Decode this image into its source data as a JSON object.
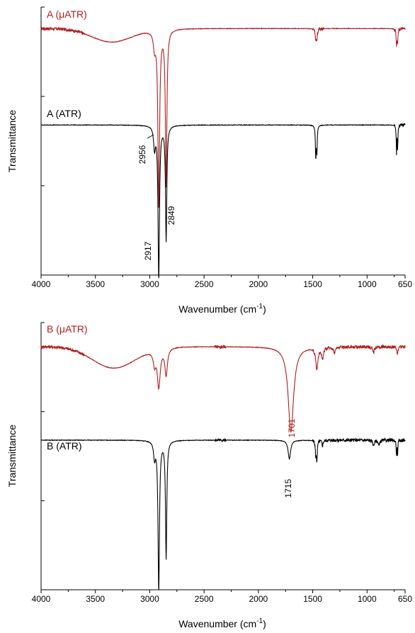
{
  "chart_data": [
    {
      "type": "line",
      "panel": "top",
      "xlabel": "Wavenumber (cm",
      "xlabel_sup": "-1",
      "xlabel_close": ")",
      "ylabel": "Transmittance",
      "xlim": [
        4000,
        650
      ],
      "x_reversed": true,
      "xticks": [
        "4000",
        "3500",
        "3000",
        "2500",
        "2000",
        "1500",
        "1000",
        "650"
      ],
      "y_tick_labels_shown": false,
      "series": [
        {
          "name": "A (μATR)",
          "color": "#b01c1c",
          "baseline": 0.92,
          "dip_width_scale": 1.0,
          "broad_bands": [
            {
              "center": 3350,
              "width": 260,
              "depth": 0.05
            }
          ],
          "peaks": [
            {
              "x": 2956,
              "depth": 0.06,
              "width": 12
            },
            {
              "x": 2917,
              "depth": 0.66,
              "width": 9
            },
            {
              "x": 2849,
              "depth": 0.58,
              "width": 8
            },
            {
              "x": 1472,
              "depth": 0.04,
              "width": 6
            },
            {
              "x": 1462,
              "depth": 0.03,
              "width": 6
            },
            {
              "x": 729,
              "depth": 0.06,
              "width": 4
            },
            {
              "x": 719,
              "depth": 0.05,
              "width": 4
            }
          ],
          "noise_regions": [
            [
              4000,
              3600
            ],
            [
              1500,
              1400
            ],
            [
              750,
              650
            ]
          ]
        },
        {
          "name": "A (ATR)",
          "color": "#000000",
          "baseline": 0.56,
          "dip_width_scale": 1.0,
          "broad_bands": [],
          "peaks": [
            {
              "x": 2956,
              "depth": 0.08,
              "width": 10
            },
            {
              "x": 2917,
              "depth": 0.57,
              "width": 8
            },
            {
              "x": 2849,
              "depth": 0.43,
              "width": 7
            },
            {
              "x": 1472,
              "depth": 0.12,
              "width": 4
            },
            {
              "x": 1462,
              "depth": 0.1,
              "width": 4
            },
            {
              "x": 729,
              "depth": 0.1,
              "width": 3
            },
            {
              "x": 719,
              "depth": 0.09,
              "width": 3
            }
          ],
          "noise_regions": [
            [
              750,
              650
            ]
          ]
        }
      ],
      "annotations": [
        {
          "text": "2956",
          "x": 2956,
          "color": "#000000"
        },
        {
          "text": "2917",
          "x": 2917,
          "color": "#000000"
        },
        {
          "text": "2849",
          "x": 2849,
          "color": "#000000"
        }
      ]
    },
    {
      "type": "line",
      "panel": "bottom",
      "xlabel": "Wavenumber (cm",
      "xlabel_sup": "-1",
      "xlabel_close": ")",
      "ylabel": "Transmittance",
      "xlim": [
        4000,
        650
      ],
      "x_reversed": true,
      "xticks": [
        "4000",
        "3500",
        "3000",
        "2500",
        "2000",
        "1500",
        "1000",
        "650"
      ],
      "y_tick_labels_shown": false,
      "series": [
        {
          "name": "B (μATR)",
          "color": "#b01c1c",
          "baseline": 0.91,
          "dip_width_scale": 1.0,
          "broad_bands": [
            {
              "center": 3330,
              "width": 280,
              "depth": 0.08
            }
          ],
          "peaks": [
            {
              "x": 2956,
              "depth": 0.05,
              "width": 14
            },
            {
              "x": 2917,
              "depth": 0.14,
              "width": 16
            },
            {
              "x": 2849,
              "depth": 0.1,
              "width": 14
            },
            {
              "x": 1701,
              "depth": 0.32,
              "width": 30
            },
            {
              "x": 1462,
              "depth": 0.08,
              "width": 12
            },
            {
              "x": 1410,
              "depth": 0.04,
              "width": 10
            },
            {
              "x": 1300,
              "depth": 0.02,
              "width": 10
            },
            {
              "x": 940,
              "depth": 0.02,
              "width": 10
            },
            {
              "x": 720,
              "depth": 0.03,
              "width": 6
            }
          ],
          "noise_regions": [
            [
              4000,
              3600
            ],
            [
              2400,
              2300
            ],
            [
              1500,
              650
            ]
          ]
        },
        {
          "name": "B (ATR)",
          "color": "#000000",
          "baseline": 0.56,
          "dip_width_scale": 1.0,
          "broad_bands": [],
          "peaks": [
            {
              "x": 2956,
              "depth": 0.06,
              "width": 10
            },
            {
              "x": 2917,
              "depth": 0.56,
              "width": 8
            },
            {
              "x": 2849,
              "depth": 0.44,
              "width": 7
            },
            {
              "x": 1715,
              "depth": 0.07,
              "width": 14
            },
            {
              "x": 1472,
              "depth": 0.05,
              "width": 5
            },
            {
              "x": 1462,
              "depth": 0.07,
              "width": 5
            },
            {
              "x": 1410,
              "depth": 0.02,
              "width": 6
            },
            {
              "x": 940,
              "depth": 0.02,
              "width": 8
            },
            {
              "x": 890,
              "depth": 0.02,
              "width": 8
            },
            {
              "x": 729,
              "depth": 0.06,
              "width": 3
            },
            {
              "x": 719,
              "depth": 0.05,
              "width": 3
            }
          ],
          "noise_regions": [
            [
              2400,
              2300
            ],
            [
              1500,
              650
            ]
          ]
        }
      ],
      "annotations": [
        {
          "text": "1701",
          "x": 1701,
          "color": "#b01c1c"
        },
        {
          "text": "1715",
          "x": 1715,
          "color": "#000000"
        }
      ]
    }
  ]
}
